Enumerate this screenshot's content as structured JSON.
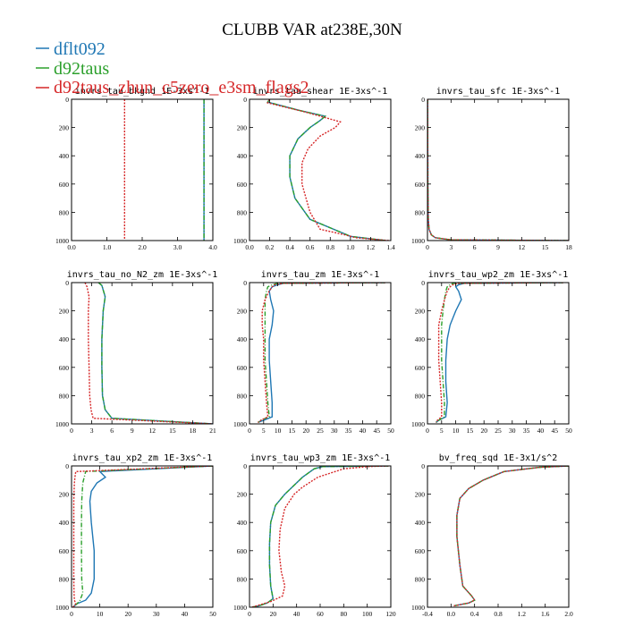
{
  "title": "CLUBB VAR at238E,30N",
  "legend": [
    {
      "name": "dflt092",
      "color": "#1f77b4"
    },
    {
      "name": "d92taus",
      "color": "#2ca02c"
    },
    {
      "name": "d92taus_zhun_c5zero_e3sm_flags2",
      "color": "#d62728"
    }
  ],
  "chart_data": [
    {
      "type": "line",
      "title": "invrs_tau_bkgnd   1E-3xs^-1",
      "xlim": [
        0,
        4
      ],
      "xticks": [
        0,
        1,
        2,
        3,
        4
      ],
      "xticklabels": [
        "0.0",
        "1.0",
        "2.0",
        "3.0",
        "4.0"
      ],
      "ylim": [
        0,
        1000
      ],
      "yticks": [
        0,
        200,
        400,
        600,
        800,
        1000
      ],
      "series": [
        {
          "name": "dflt092",
          "x": [
            3.75,
            3.75
          ],
          "y": [
            0,
            1000
          ]
        },
        {
          "name": "d92taus",
          "x": [
            3.75,
            3.75
          ],
          "y": [
            0,
            1000
          ]
        },
        {
          "name": "d92taus_zhun_c5zero_e3sm_flags2",
          "x": [
            1.5,
            1.5
          ],
          "y": [
            0,
            1000
          ]
        }
      ]
    },
    {
      "type": "line",
      "title": "invrs_tau_shear   1E-3xs^-1",
      "xlim": [
        0,
        1.4
      ],
      "xticks": [
        0,
        0.2,
        0.4,
        0.6,
        0.8,
        1.0,
        1.2,
        1.4
      ],
      "xticklabels": [
        "0.0",
        "0.2",
        "0.4",
        "0.6",
        "0.8",
        "1.0",
        "1.2",
        "1.4"
      ],
      "ylim": [
        0,
        1000
      ],
      "yticks": [
        0,
        200,
        400,
        600,
        800,
        1000
      ],
      "series": [
        {
          "name": "dflt092",
          "x": [
            0.2,
            0.18,
            0.5,
            0.75,
            0.7,
            0.6,
            0.48,
            0.4,
            0.4,
            0.45,
            0.6,
            0.9,
            1.0,
            1.35
          ],
          "y": [
            0,
            20,
            80,
            120,
            150,
            200,
            280,
            400,
            550,
            700,
            850,
            940,
            970,
            1000
          ]
        },
        {
          "name": "d92taus",
          "x": [
            0.2,
            0.18,
            0.5,
            0.75,
            0.7,
            0.6,
            0.48,
            0.4,
            0.4,
            0.45,
            0.6,
            0.9,
            1.0,
            1.35
          ],
          "y": [
            0,
            20,
            80,
            120,
            150,
            200,
            280,
            400,
            550,
            700,
            850,
            940,
            970,
            1000
          ]
        },
        {
          "name": "d92taus_zhun_c5zero_e3sm_flags2",
          "x": [
            0.2,
            0.18,
            0.55,
            0.8,
            0.9,
            0.85,
            0.7,
            0.58,
            0.52,
            0.52,
            0.6,
            0.7,
            0.95,
            1.05,
            1.38
          ],
          "y": [
            0,
            25,
            90,
            140,
            160,
            200,
            260,
            350,
            450,
            600,
            800,
            920,
            960,
            980,
            1000
          ]
        }
      ]
    },
    {
      "type": "line",
      "title": "invrs_tau_sfc   1E-3xs^-1",
      "xlim": [
        0,
        18
      ],
      "xticks": [
        0,
        3,
        6,
        9,
        12,
        15,
        18
      ],
      "xticklabels": [
        "0",
        "3",
        "6",
        "9",
        "12",
        "15",
        "18"
      ],
      "ylim": [
        0,
        1000
      ],
      "yticks": [
        0,
        200,
        400,
        600,
        800,
        1000
      ],
      "series": [
        {
          "name": "dflt092",
          "x": [
            0.02,
            0.03,
            0.05,
            0.1,
            0.2,
            0.5,
            1,
            3,
            18
          ],
          "y": [
            0,
            300,
            600,
            850,
            920,
            960,
            980,
            995,
            1000
          ]
        },
        {
          "name": "d92taus",
          "x": [
            0.02,
            0.03,
            0.05,
            0.1,
            0.2,
            0.5,
            1,
            3,
            18
          ],
          "y": [
            0,
            300,
            600,
            850,
            920,
            960,
            980,
            995,
            1000
          ]
        },
        {
          "name": "d92taus_zhun_c5zero_e3sm_flags2",
          "x": [
            0.02,
            0.03,
            0.05,
            0.1,
            0.2,
            0.5,
            1,
            3,
            18
          ],
          "y": [
            0,
            300,
            600,
            850,
            920,
            960,
            980,
            995,
            1000
          ]
        }
      ]
    },
    {
      "type": "line",
      "title": "invrs_tau_no_N2_zm   1E-3xs^-1",
      "xlim": [
        0,
        21
      ],
      "xticks": [
        0,
        3,
        6,
        9,
        12,
        15,
        18,
        21
      ],
      "xticklabels": [
        "0",
        "3",
        "6",
        "9",
        "12",
        "15",
        "18",
        "21"
      ],
      "ylim": [
        0,
        1000
      ],
      "yticks": [
        0,
        200,
        400,
        600,
        800,
        1000
      ],
      "series": [
        {
          "name": "dflt092",
          "x": [
            4.0,
            4.5,
            5.0,
            4.7,
            4.5,
            4.5,
            4.6,
            5.0,
            6.0,
            21
          ],
          "y": [
            0,
            20,
            100,
            200,
            400,
            600,
            800,
            900,
            960,
            1000
          ]
        },
        {
          "name": "d92taus",
          "x": [
            4.0,
            4.5,
            5.0,
            4.7,
            4.5,
            4.5,
            4.6,
            5.0,
            6.0,
            21
          ],
          "y": [
            0,
            20,
            100,
            200,
            400,
            600,
            800,
            900,
            960,
            1000
          ]
        },
        {
          "name": "d92taus_zhun_c5zero_e3sm_flags2",
          "x": [
            2.0,
            2.3,
            2.6,
            2.5,
            2.5,
            2.6,
            2.7,
            2.9,
            3.2,
            21
          ],
          "y": [
            0,
            30,
            100,
            200,
            400,
            600,
            800,
            900,
            960,
            1000
          ]
        }
      ]
    },
    {
      "type": "line",
      "title": "invrs_tau_zm   1E-3xs^-1",
      "xlim": [
        0,
        50
      ],
      "xticks": [
        0,
        5,
        10,
        15,
        20,
        25,
        30,
        35,
        40,
        45,
        50
      ],
      "xticklabels": [
        "0",
        "5",
        "10",
        "15",
        "20",
        "25",
        "30",
        "35",
        "40",
        "45",
        "50"
      ],
      "ylim": [
        0,
        1000
      ],
      "yticks": [
        0,
        200,
        400,
        600,
        800,
        1000
      ],
      "series": [
        {
          "name": "dflt092",
          "x": [
            48,
            12,
            10,
            8,
            7,
            7.5,
            8.5,
            8,
            7,
            7,
            7.5,
            8,
            8,
            5,
            3
          ],
          "y": [
            0,
            5,
            15,
            30,
            60,
            120,
            200,
            300,
            400,
            550,
            700,
            850,
            950,
            975,
            990
          ]
        },
        {
          "name": "d92taus",
          "x": [
            48,
            10,
            8,
            6.5,
            6,
            5.5,
            5.5,
            5.5,
            5.5,
            5.5,
            6,
            6.5,
            7,
            4,
            3
          ],
          "y": [
            0,
            5,
            15,
            30,
            60,
            120,
            200,
            300,
            400,
            550,
            700,
            850,
            950,
            975,
            990
          ]
        },
        {
          "name": "d92taus_zhun_c5zero_e3sm_flags2",
          "x": [
            48,
            12,
            9,
            8,
            7,
            5.5,
            4.5,
            4.5,
            5,
            5,
            5.5,
            6,
            6.5,
            4,
            3
          ],
          "y": [
            0,
            5,
            15,
            30,
            60,
            120,
            200,
            300,
            400,
            550,
            700,
            850,
            950,
            975,
            990
          ]
        }
      ]
    },
    {
      "type": "line",
      "title": "invrs_tau_wp2_zm   1E-3xs^-1",
      "xlim": [
        0,
        50
      ],
      "xticks": [
        0,
        5,
        10,
        15,
        20,
        25,
        30,
        35,
        40,
        45,
        50
      ],
      "xticklabels": [
        "0",
        "5",
        "10",
        "15",
        "20",
        "25",
        "30",
        "35",
        "40",
        "45",
        "50"
      ],
      "ylim": [
        0,
        1000
      ],
      "yticks": [
        0,
        200,
        400,
        600,
        800,
        1000
      ],
      "series": [
        {
          "name": "dflt092",
          "x": [
            48,
            13,
            11,
            10,
            11,
            12,
            10,
            8,
            7,
            6.5,
            6.5,
            7,
            6.5,
            4,
            3
          ],
          "y": [
            0,
            5,
            15,
            30,
            60,
            120,
            200,
            300,
            400,
            550,
            700,
            850,
            950,
            975,
            990
          ]
        },
        {
          "name": "d92taus",
          "x": [
            48,
            9,
            8,
            7,
            6.5,
            6,
            5.5,
            5,
            5,
            5,
            5.5,
            6,
            6,
            4,
            3
          ],
          "y": [
            0,
            5,
            15,
            30,
            60,
            120,
            200,
            300,
            400,
            550,
            700,
            850,
            950,
            975,
            990
          ]
        },
        {
          "name": "d92taus_zhun_c5zero_e3sm_flags2",
          "x": [
            48,
            11,
            9,
            8,
            7,
            6,
            5,
            4,
            4,
            4,
            4.5,
            5,
            5,
            3.5,
            3
          ],
          "y": [
            0,
            5,
            15,
            30,
            60,
            120,
            200,
            300,
            400,
            550,
            700,
            850,
            950,
            975,
            990
          ]
        }
      ]
    },
    {
      "type": "line",
      "title": "invrs_tau_xp2_zm   1E-3xs^-1",
      "xlim": [
        0,
        50
      ],
      "xticks": [
        0,
        10,
        20,
        30,
        40,
        50
      ],
      "xticklabels": [
        "0",
        "10",
        "20",
        "30",
        "40",
        "50"
      ],
      "ylim": [
        0,
        1000
      ],
      "yticks": [
        0,
        200,
        400,
        600,
        800,
        1000
      ],
      "series": [
        {
          "name": "dflt092",
          "x": [
            50,
            10,
            12,
            9,
            7,
            6.5,
            7,
            8,
            8,
            7,
            5,
            2,
            1,
            0.5
          ],
          "y": [
            0,
            40,
            80,
            120,
            180,
            250,
            400,
            600,
            800,
            900,
            950,
            975,
            990,
            1000
          ]
        },
        {
          "name": "d92taus",
          "x": [
            50,
            5,
            4.5,
            4,
            3.8,
            3.6,
            3.5,
            3.5,
            3.6,
            4,
            3,
            2,
            1,
            0.5
          ],
          "y": [
            0,
            40,
            80,
            120,
            180,
            250,
            400,
            600,
            800,
            900,
            950,
            975,
            990,
            1000
          ]
        },
        {
          "name": "d92taus_zhun_c5zero_e3sm_flags2",
          "x": [
            50,
            1.5,
            1.2,
            1.0,
            0.9,
            0.8,
            0.8,
            0.8,
            0.8,
            0.9,
            1,
            1.5,
            1,
            0.5
          ],
          "y": [
            0,
            40,
            80,
            120,
            180,
            250,
            400,
            600,
            800,
            900,
            950,
            975,
            990,
            1000
          ]
        }
      ]
    },
    {
      "type": "line",
      "title": "invrs_tau_wp3_zm   1E-3xs^-1",
      "xlim": [
        0,
        120
      ],
      "xticks": [
        0,
        20,
        40,
        60,
        80,
        100,
        120
      ],
      "xticklabels": [
        "0",
        "20",
        "40",
        "60",
        "80",
        "100",
        "120"
      ],
      "ylim": [
        0,
        1000
      ],
      "yticks": [
        0,
        200,
        400,
        600,
        800,
        1000
      ],
      "series": [
        {
          "name": "dflt092",
          "x": [
            118,
            62,
            55,
            45,
            30,
            22,
            18,
            17,
            17,
            18,
            20,
            15,
            8,
            2
          ],
          "y": [
            0,
            5,
            20,
            80,
            200,
            280,
            400,
            550,
            700,
            850,
            940,
            970,
            990,
            1000
          ]
        },
        {
          "name": "d92taus",
          "x": [
            118,
            62,
            55,
            45,
            30,
            22,
            18,
            17,
            17,
            18,
            20,
            15,
            8,
            2
          ],
          "y": [
            0,
            5,
            20,
            80,
            200,
            280,
            400,
            550,
            700,
            850,
            940,
            970,
            990,
            1000
          ]
        },
        {
          "name": "d92taus_zhun_c5zero_e3sm_flags2",
          "x": [
            118,
            100,
            80,
            58,
            45,
            38,
            30,
            26,
            25,
            27,
            30,
            28,
            18,
            8,
            2
          ],
          "y": [
            0,
            5,
            20,
            80,
            150,
            200,
            300,
            450,
            600,
            750,
            850,
            920,
            960,
            985,
            1000
          ]
        }
      ]
    },
    {
      "type": "line",
      "title": "bv_freq_sqd   1E-3x1/s^2",
      "xlim": [
        -0.4,
        2.0
      ],
      "xticks": [
        -0.4,
        0,
        0.4,
        0.8,
        1.2,
        1.6,
        2.0
      ],
      "xticklabels": [
        "-0.4",
        "0.0",
        "0.4",
        "0.8",
        "1.2",
        "1.6",
        "2.0"
      ],
      "ylim": [
        0,
        1000
      ],
      "yticks": [
        0,
        200,
        400,
        600,
        800,
        1000
      ],
      "series": [
        {
          "name": "dflt092",
          "x": [
            2.0,
            1.5,
            0.9,
            0.55,
            0.3,
            0.15,
            0.1,
            0.1,
            0.15,
            0.2,
            0.35,
            0.4,
            0.3,
            0.05
          ],
          "y": [
            0,
            10,
            40,
            100,
            160,
            230,
            350,
            500,
            700,
            850,
            920,
            950,
            970,
            990
          ]
        },
        {
          "name": "d92taus",
          "x": [
            2.0,
            1.5,
            0.9,
            0.55,
            0.3,
            0.15,
            0.1,
            0.1,
            0.15,
            0.2,
            0.35,
            0.4,
            0.3,
            0.05
          ],
          "y": [
            0,
            10,
            40,
            100,
            160,
            230,
            350,
            500,
            700,
            850,
            920,
            950,
            970,
            990
          ]
        },
        {
          "name": "d92taus_zhun_c5zero_e3sm_flags2",
          "x": [
            2.0,
            1.5,
            0.9,
            0.55,
            0.3,
            0.15,
            0.1,
            0.1,
            0.15,
            0.2,
            0.35,
            0.4,
            0.3,
            0.05
          ],
          "y": [
            0,
            10,
            40,
            100,
            160,
            230,
            350,
            500,
            700,
            850,
            920,
            950,
            970,
            990
          ]
        }
      ]
    }
  ]
}
